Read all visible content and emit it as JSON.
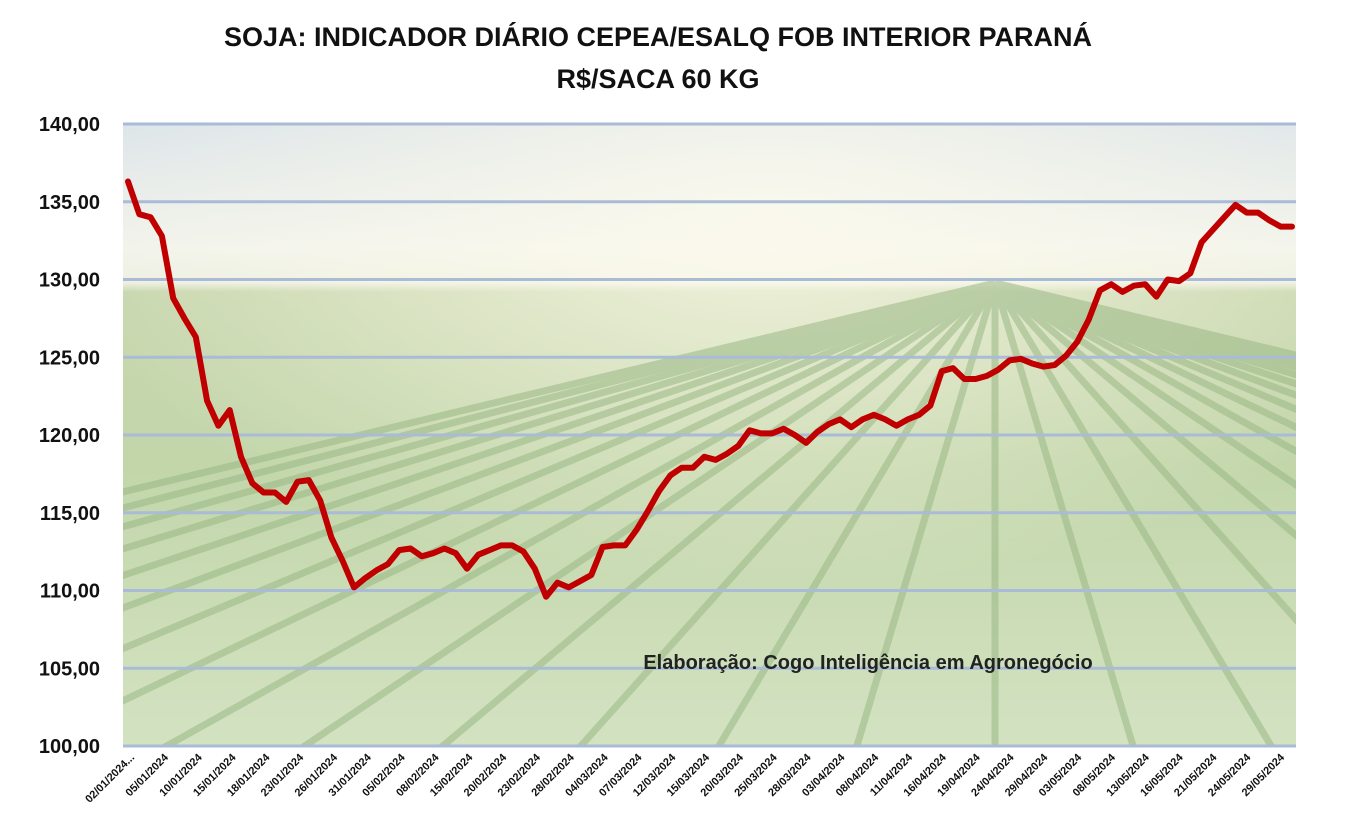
{
  "chart_data": {
    "type": "line",
    "title": "SOJA: INDICADOR DIÁRIO CEPEA/ESALQ FOB INTERIOR PARANÁ",
    "subtitle": "R$/SACA 60 KG",
    "xlabel": "",
    "ylabel": "",
    "ylim": [
      100,
      140
    ],
    "y_ticks": [
      "100,00",
      "105,00",
      "110,00",
      "115,00",
      "120,00",
      "125,00",
      "130,00",
      "135,00",
      "140,00"
    ],
    "grid": true,
    "legend": "none",
    "annotation": "Elaboração: Cogo Inteligência em Agronegócio",
    "x_tick_labels": [
      "02/01/2024...",
      "05/01/2024",
      "10/01/2024",
      "15/01/2024",
      "18/01/2024",
      "23/01/2024",
      "26/01/2024",
      "31/01/2024",
      "05/02/2024",
      "08/02/2024",
      "15/02/2024",
      "20/02/2024",
      "23/02/2024",
      "28/02/2024",
      "04/03/2024",
      "07/03/2024",
      "12/03/2024",
      "15/03/2024",
      "20/03/2024",
      "25/03/2024",
      "28/03/2024",
      "03/04/2024",
      "08/04/2024",
      "11/04/2024",
      "16/04/2024",
      "19/04/2024",
      "24/04/2024",
      "29/04/2024",
      "03/05/2024",
      "08/05/2024",
      "13/05/2024",
      "16/05/2024",
      "21/05/2024",
      "24/05/2024",
      "29/05/2024"
    ],
    "series": [
      {
        "name": "",
        "color": "#c00000",
        "values": [
          136.3,
          134.2,
          134.0,
          132.8,
          128.8,
          127.5,
          126.3,
          122.2,
          120.6,
          121.6,
          118.6,
          116.9,
          116.3,
          116.3,
          115.7,
          117.0,
          117.1,
          115.8,
          113.4,
          111.9,
          110.2,
          110.8,
          111.3,
          111.7,
          112.6,
          112.7,
          112.2,
          112.4,
          112.7,
          112.4,
          111.4,
          112.3,
          112.6,
          112.9,
          112.9,
          112.5,
          111.4,
          109.6,
          110.5,
          110.2,
          110.6,
          111.0,
          112.8,
          112.9,
          112.9,
          113.9,
          115.1,
          116.4,
          117.4,
          117.9,
          117.9,
          118.6,
          118.4,
          118.8,
          119.3,
          120.3,
          120.1,
          120.1,
          120.4,
          120.0,
          119.5,
          120.2,
          120.7,
          121.0,
          120.5,
          121.0,
          121.3,
          121.0,
          120.6,
          121.0,
          121.3,
          121.9,
          124.1,
          124.3,
          123.6,
          123.6,
          123.8,
          124.2,
          124.8,
          124.9,
          124.6,
          124.4,
          124.5,
          125.1,
          126.0,
          127.4,
          129.3,
          129.7,
          129.2,
          129.6,
          129.7,
          128.9,
          130.0,
          129.9,
          130.4,
          132.4,
          133.2,
          134.0,
          134.8,
          134.3,
          134.3,
          133.8,
          133.4,
          133.4
        ]
      }
    ]
  },
  "colors": {
    "line": "#c00000",
    "gridline": "#a9bbd6",
    "sky_top": "#d3dde3",
    "field_green": "#a9c58b",
    "annotation_text": "#222222"
  }
}
